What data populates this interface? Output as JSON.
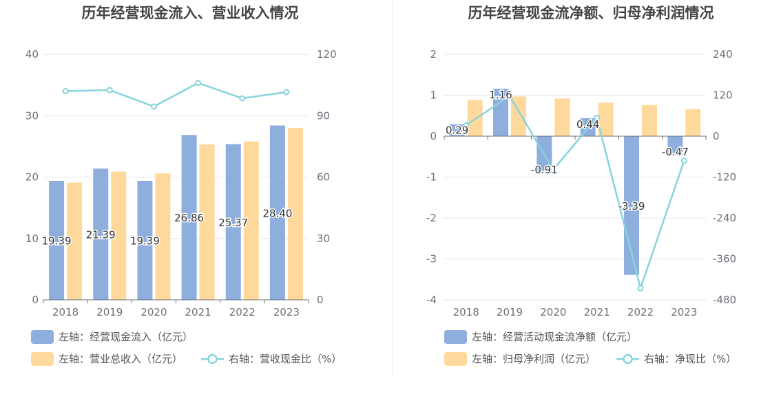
{
  "chart_data": [
    {
      "type": "bar",
      "title": "历年经营现金流入、营业收入情况",
      "categories": [
        "2018",
        "2019",
        "2020",
        "2021",
        "2022",
        "2023"
      ],
      "left_axis": {
        "ylim": [
          0,
          40
        ],
        "ticks": [
          "0",
          "10",
          "20",
          "30",
          "40"
        ]
      },
      "right_axis": {
        "ylim": [
          0,
          120
        ],
        "ticks": [
          "0",
          "30",
          "60",
          "90",
          "120"
        ]
      },
      "series": [
        {
          "name": "左轴：经营现金流入（亿元）",
          "kind": "bar",
          "axis": "left",
          "color": "#8eaedd",
          "values": [
            19.39,
            21.39,
            19.39,
            26.86,
            25.37,
            28.4
          ],
          "labels": [
            "19.39",
            "21.39",
            "19.39",
            "26.86",
            "25.37",
            "28.40"
          ]
        },
        {
          "name": "左轴：营业总收入（亿元）",
          "kind": "bar",
          "axis": "left",
          "color": "#ffd99b",
          "values": [
            19.1,
            20.9,
            20.6,
            25.3,
            25.8,
            28.0
          ]
        },
        {
          "name": "右轴：营收现金比（%）",
          "kind": "line",
          "axis": "right",
          "color": "#86d4dc",
          "values": [
            102,
            102.5,
            94.5,
            106,
            98.5,
            101.5
          ]
        }
      ],
      "grid": true,
      "legend_position": "bottom"
    },
    {
      "type": "bar",
      "title": "历年经营现金流净额、归母净利润情况",
      "categories": [
        "2018",
        "2019",
        "2020",
        "2021",
        "2022",
        "2023"
      ],
      "left_axis": {
        "ylim": [
          -4,
          2
        ],
        "ticks": [
          "-4",
          "-3",
          "-2",
          "-1",
          "0",
          "1",
          "2"
        ]
      },
      "right_axis": {
        "ylim": [
          -480,
          240
        ],
        "ticks": [
          "-480",
          "-360",
          "-240",
          "-120",
          "0",
          "120",
          "240"
        ]
      },
      "series": [
        {
          "name": "左轴：经营活动现金流净额（亿元）",
          "kind": "bar",
          "axis": "left",
          "color": "#8eaedd",
          "values": [
            0.29,
            1.16,
            -0.91,
            0.44,
            -3.39,
            -0.47
          ],
          "labels": [
            "0.29",
            "1.16",
            "-0.91",
            "0.44",
            "-3.39",
            "-0.47"
          ]
        },
        {
          "name": "左轴：归母净利润（亿元）",
          "kind": "bar",
          "axis": "left",
          "color": "#ffd99b",
          "values": [
            0.88,
            0.97,
            0.92,
            0.82,
            0.76,
            0.66
          ]
        },
        {
          "name": "右轴：净现比（%）",
          "kind": "line",
          "axis": "right",
          "color": "#86d4dc",
          "values": [
            32,
            118,
            -98,
            54,
            -446,
            -72
          ]
        }
      ],
      "grid": true,
      "legend_position": "bottom"
    }
  ]
}
